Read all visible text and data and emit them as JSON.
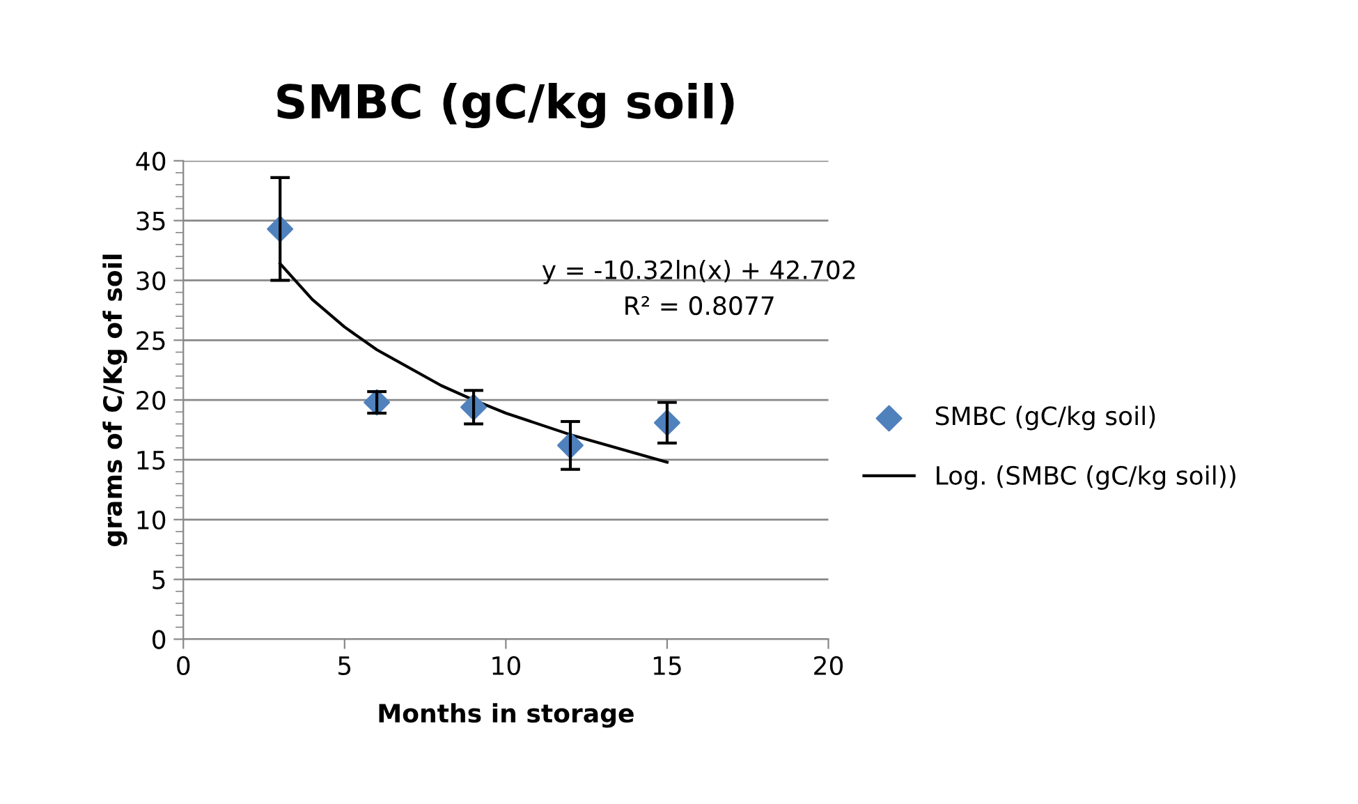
{
  "chart_data": {
    "type": "scatter",
    "title": "SMBC (gC/kg soil)",
    "xlabel": "Months in storage",
    "ylabel": "grams of C/Kg of soil",
    "xlim": [
      0,
      20
    ],
    "xticks": [
      0,
      5,
      10,
      15,
      20
    ],
    "ylim": [
      0,
      40
    ],
    "yticks": [
      0,
      5,
      10,
      15,
      20,
      25,
      30,
      35,
      40
    ],
    "grid": "y",
    "legend": "right",
    "marker": "diamond",
    "annotations": [
      "y = -10.32ln(x) + 42.702\nR² = 0.8077"
    ],
    "series": [
      {
        "name": "SMBC (gC/kg soil)",
        "color": "#4f81bd",
        "x": [
          3,
          6,
          9,
          12,
          15
        ],
        "values": [
          34.3,
          19.8,
          19.4,
          16.2,
          18.1
        ],
        "errors": [
          4.3,
          0.9,
          1.4,
          2.0,
          1.7
        ]
      },
      {
        "name": "Log. (SMBC (gC/kg soil))",
        "type": "line",
        "color": "#000000",
        "marker": "none",
        "line_style": "solid",
        "x": [
          3,
          4,
          5,
          6,
          8,
          9,
          10,
          12,
          15
        ],
        "values": [
          31.4,
          28.4,
          26.1,
          24.2,
          21.2,
          20.0,
          18.9,
          17.1,
          14.8
        ]
      }
    ]
  }
}
